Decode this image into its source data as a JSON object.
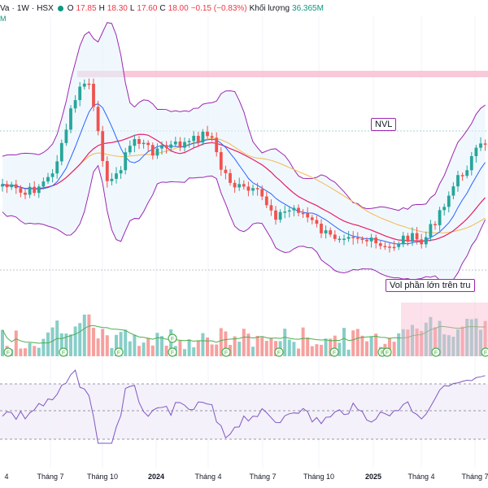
{
  "header": {
    "symbol_tail": "Va",
    "interval": "1W",
    "exchange": "HSX",
    "open_label": "O",
    "open": "17.85",
    "high_label": "H",
    "high": "18.30",
    "low_label": "L",
    "low": "17.60",
    "close_label": "C",
    "close": "18.00",
    "change": "−0.15 (−0.83%)",
    "volume_label": "Khối lượng",
    "volume": "36.365M",
    "sub_value": "M"
  },
  "annotations": {
    "ticker_label": "NVL",
    "volume_note": "Vol phần lớn trên tru"
  },
  "dividend_marker": "F",
  "colors": {
    "up": "#26a69a",
    "down": "#ef5350",
    "bb_band": "#9c27b0",
    "ma_fast": "#2962ff",
    "ma_mid": "#e91e63",
    "ma_slow": "#f5b84d",
    "vol_ma": "#4caf50",
    "rsi": "#7e57c2",
    "resistance_zone": "#f8bbd0"
  },
  "chart_data": {
    "type": "candlestick",
    "x_ticks": [
      "4",
      "Tháng 7",
      "Tháng 10",
      "2024",
      "Tháng 4",
      "Tháng 7",
      "Tháng 10",
      "2025",
      "Tháng 4",
      "Tháng 7"
    ],
    "x_ticks_bold": [
      "2024",
      "2025"
    ],
    "rsi_levels": [
      70,
      50,
      30
    ]
  }
}
